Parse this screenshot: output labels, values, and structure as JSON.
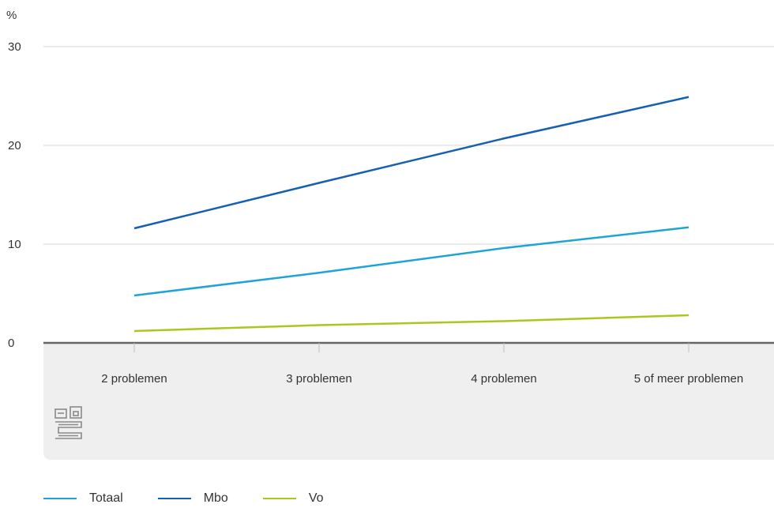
{
  "chart_data": {
    "type": "line",
    "ylabel": "%",
    "ylim": [
      0,
      30
    ],
    "yticks": [
      0,
      10,
      20,
      30
    ],
    "categories": [
      "2 problemen",
      "3 problemen",
      "4 problemen",
      "5 of meer problemen"
    ],
    "series": [
      {
        "name": "Totaal",
        "color": "#1fa4d6",
        "values": [
          4.8,
          7.1,
          9.6,
          11.7
        ]
      },
      {
        "name": "Mbo",
        "color": "#1560b0",
        "values": [
          11.6,
          16.2,
          20.7,
          24.9
        ]
      },
      {
        "name": "Vo",
        "color": "#a8c81e",
        "values": [
          1.2,
          1.8,
          2.2,
          2.8
        ]
      }
    ],
    "grid": true,
    "legend_position": "bottom-left",
    "logo": "cbs-logo"
  }
}
